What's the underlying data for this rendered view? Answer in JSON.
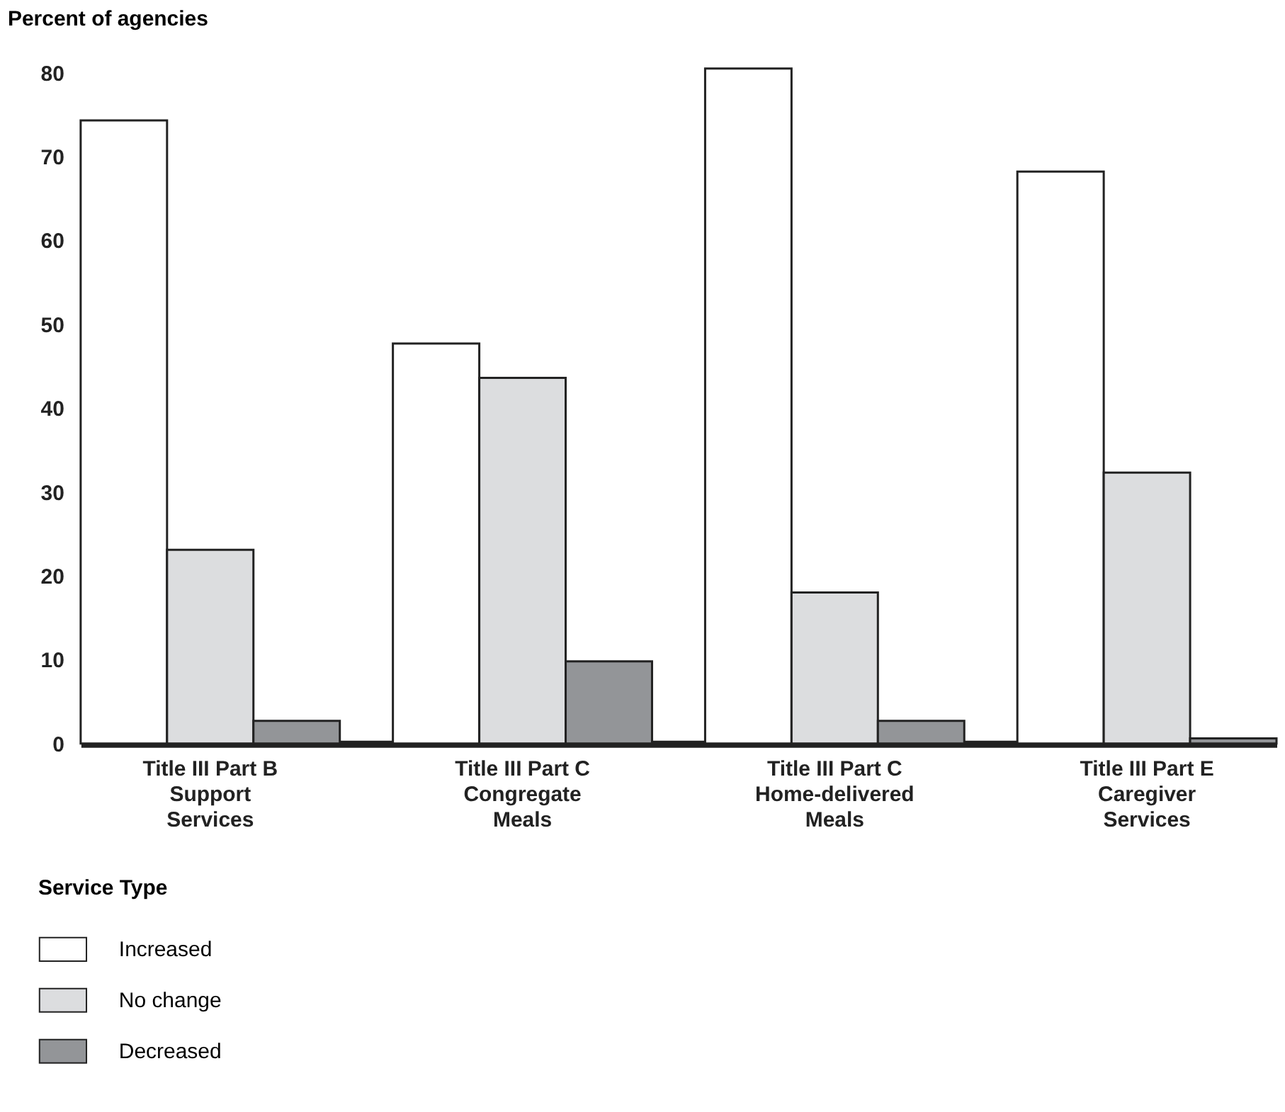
{
  "chart_data": {
    "type": "bar",
    "ylabel": "Percent of agencies",
    "legend_title": "Service Type",
    "categories": [
      "Title III Part B\nSupport\nServices",
      "Title III Part C\nCongregate\nMeals",
      "Title III Part C\nHome-delivered\nMeals",
      "Title III Part E\nCaregiver\nServices"
    ],
    "series": [
      {
        "name": "Increased",
        "color": "#ffffff",
        "values": [
          74.3,
          47.7,
          80.5,
          68.2
        ]
      },
      {
        "name": "No change",
        "color": "#dcdddf",
        "values": [
          23.1,
          43.6,
          18.0,
          32.3
        ]
      },
      {
        "name": "Decreased",
        "color": "#939598",
        "values": [
          2.7,
          9.8,
          2.7,
          0.6
        ]
      }
    ],
    "ylim": [
      0,
      81
    ],
    "yticks": [
      0,
      10,
      20,
      30,
      40,
      50,
      60,
      70,
      80
    ],
    "grid": false,
    "legend": "bottom left"
  }
}
